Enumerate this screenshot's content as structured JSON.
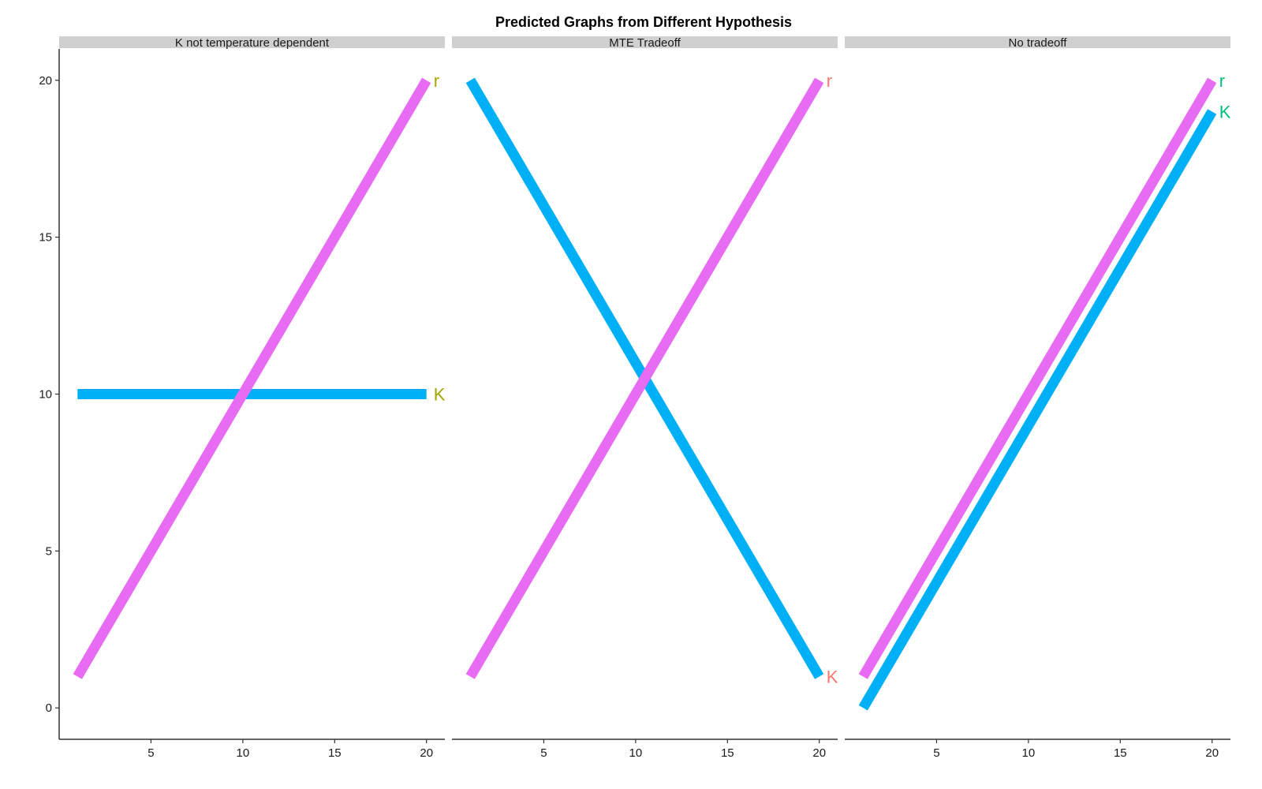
{
  "chart_data": {
    "type": "line",
    "title": "Predicted Graphs from Different Hypothesis",
    "xlabel": "",
    "ylabel": "",
    "xlim": [
      0,
      21
    ],
    "ylim": [
      -1,
      21
    ],
    "x_ticks": [
      5,
      10,
      15,
      20
    ],
    "y_ticks": [
      0,
      5,
      10,
      15,
      20
    ],
    "grid": false,
    "legend": "none",
    "series_colors": {
      "r": "#E76BF3",
      "K": "#00B0F6"
    },
    "panels": [
      {
        "strip": "K not temperature dependent",
        "label_color": "#A3A500",
        "series": [
          {
            "name": "K",
            "x": [
              1,
              20
            ],
            "y": [
              10,
              10
            ]
          },
          {
            "name": "r",
            "x": [
              1,
              20
            ],
            "y": [
              1,
              20
            ]
          }
        ],
        "labels": [
          {
            "text": "r",
            "x": 20,
            "y": 20
          },
          {
            "text": "K",
            "x": 20,
            "y": 10
          }
        ]
      },
      {
        "strip": "MTE Tradeoff",
        "label_color": "#F8766D",
        "series": [
          {
            "name": "K",
            "x": [
              1,
              20
            ],
            "y": [
              20,
              1
            ]
          },
          {
            "name": "r",
            "x": [
              1,
              20
            ],
            "y": [
              1,
              20
            ]
          }
        ],
        "labels": [
          {
            "text": "r",
            "x": 20,
            "y": 20
          },
          {
            "text": "K",
            "x": 20,
            "y": 1
          }
        ]
      },
      {
        "strip": "No tradeoff",
        "label_color": "#00BF7D",
        "series": [
          {
            "name": "K",
            "x": [
              1,
              20
            ],
            "y": [
              0,
              19
            ]
          },
          {
            "name": "r",
            "x": [
              1,
              20
            ],
            "y": [
              1,
              20
            ]
          }
        ],
        "labels": [
          {
            "text": "r",
            "x": 20,
            "y": 20
          },
          {
            "text": "K",
            "x": 20,
            "y": 19
          }
        ]
      }
    ]
  }
}
